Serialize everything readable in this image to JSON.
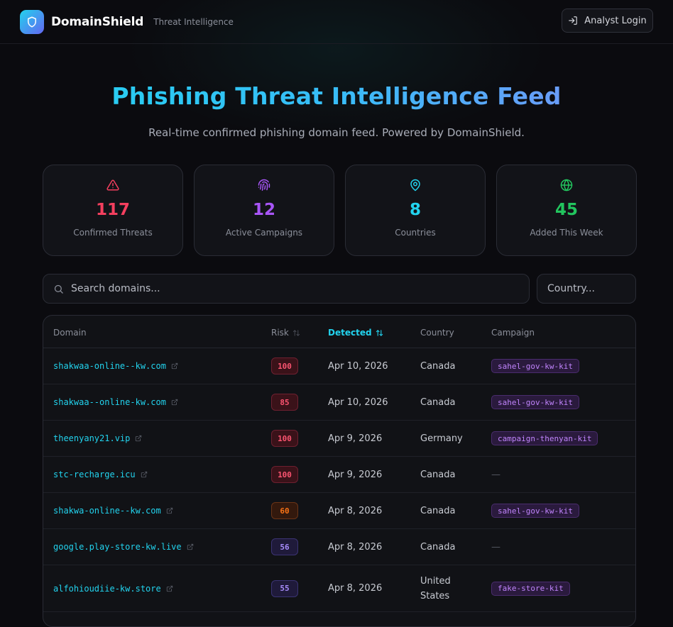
{
  "header": {
    "brand": "DomainShield",
    "subtitle": "Threat Intelligence",
    "login_label": "Analyst Login"
  },
  "hero": {
    "title": "Phishing Threat Intelligence Feed",
    "subtitle": "Real-time confirmed phishing domain feed. Powered by DomainShield."
  },
  "stats": [
    {
      "icon": "alert-triangle-icon",
      "value": "117",
      "label": "Confirmed Threats",
      "color": "#f43f5e"
    },
    {
      "icon": "fingerprint-icon",
      "value": "12",
      "label": "Active Campaigns",
      "color": "#a855f7"
    },
    {
      "icon": "map-pin-icon",
      "value": "8",
      "label": "Countries",
      "color": "#22d3ee"
    },
    {
      "icon": "globe-icon",
      "value": "45",
      "label": "Added This Week",
      "color": "#22c55e"
    }
  ],
  "search": {
    "placeholder": "Search domains..."
  },
  "country_filter": {
    "label": "Country..."
  },
  "table": {
    "columns": {
      "domain": "Domain",
      "risk": "Risk",
      "detected": "Detected",
      "country": "Country",
      "campaign": "Campaign"
    },
    "rows": [
      {
        "domain": "shakwaa-online--kw.com",
        "risk": "100",
        "detected": "Apr 10, 2026",
        "country": "Canada",
        "campaign": "sahel-gov-kw-kit"
      },
      {
        "domain": "shakwaa--online-kw.com",
        "risk": "85",
        "detected": "Apr 10, 2026",
        "country": "Canada",
        "campaign": "sahel-gov-kw-kit"
      },
      {
        "domain": "theenyany21.vip",
        "risk": "100",
        "detected": "Apr 9, 2026",
        "country": "Germany",
        "campaign": "campaign-thenyan-kit"
      },
      {
        "domain": "stc-recharge.icu",
        "risk": "100",
        "detected": "Apr 9, 2026",
        "country": "Canada",
        "campaign": "—"
      },
      {
        "domain": "shakwa-online--kw.com",
        "risk": "60",
        "detected": "Apr 8, 2026",
        "country": "Canada",
        "campaign": "sahel-gov-kw-kit"
      },
      {
        "domain": "google.play-store-kw.live",
        "risk": "56",
        "detected": "Apr 8, 2026",
        "country": "Canada",
        "campaign": "—"
      },
      {
        "domain": "alfohioudiie-kw.store",
        "risk": "55",
        "detected": "Apr 8, 2026",
        "country_line1": "United",
        "country_line2": "States",
        "campaign": "fake-store-kit"
      }
    ]
  }
}
